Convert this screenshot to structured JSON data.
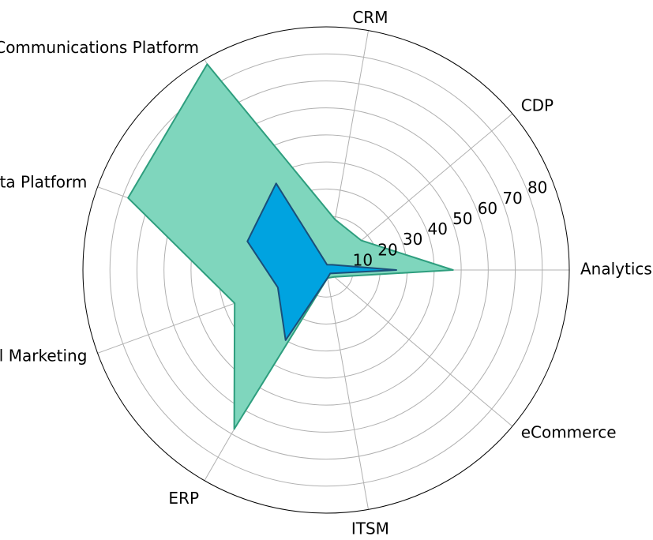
{
  "chart_data": {
    "type": "radar",
    "categories": [
      "Analytics & AI",
      "CDP",
      "CRM",
      "Communications Platform",
      "Data Platform",
      "Digital Marketing",
      "ERP",
      "ITSM",
      "eCommerce"
    ],
    "radial_ticks": [
      10,
      20,
      30,
      40,
      50,
      60,
      70,
      80
    ],
    "rlim": [
      0,
      90
    ],
    "grid": true,
    "series": [
      {
        "values": [
          47,
          17,
          19,
          88,
          78,
          36,
          68,
          3,
          4
        ],
        "fill": "#7fd6bd",
        "stroke": "#2e9e7e"
      },
      {
        "values": [
          26,
          3,
          2,
          37,
          31,
          19,
          30,
          3,
          2
        ],
        "fill": "#00a3e0",
        "stroke": "#1a4f7a"
      }
    ]
  }
}
